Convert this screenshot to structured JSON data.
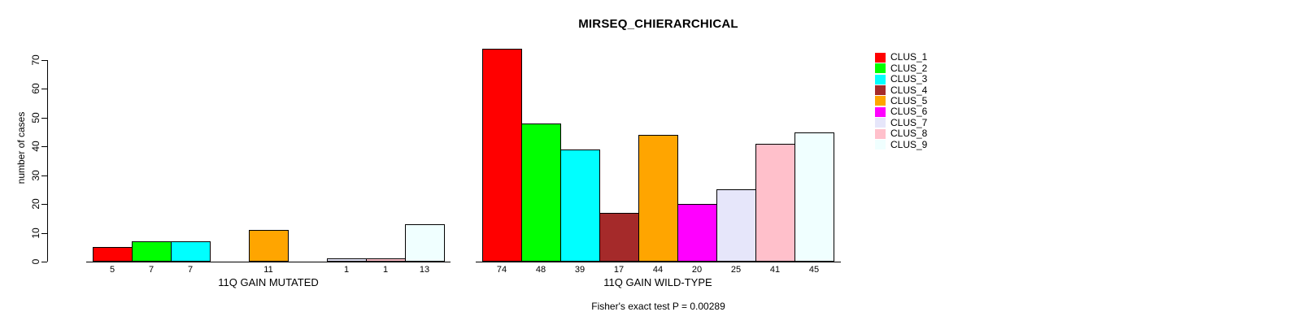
{
  "page": {
    "background": "#FFFFFF"
  },
  "chart_data": {
    "type": "bar",
    "title": "MIRSEQ_CHIERARCHICAL",
    "ylabel": "number of cases",
    "xlabel": "",
    "ylim": [
      0,
      70
    ],
    "yticks": [
      0,
      10,
      20,
      30,
      40,
      50,
      60,
      70
    ],
    "grid": false,
    "bar_border_color": "#000000",
    "legend_position": "right",
    "legend": {
      "entries": [
        {
          "label": "CLUS_1",
          "color": "#FF0000"
        },
        {
          "label": "CLUS_2",
          "color": "#00FF00"
        },
        {
          "label": "CLUS_3",
          "color": "#00FFFF"
        },
        {
          "label": "CLUS_4",
          "color": "#A52A2A"
        },
        {
          "label": "CLUS_5",
          "color": "#FFA500"
        },
        {
          "label": "CLUS_6",
          "color": "#FF00FF"
        },
        {
          "label": "CLUS_7",
          "color": "#E6E6FA"
        },
        {
          "label": "CLUS_8",
          "color": "#FFC0CB"
        },
        {
          "label": "CLUS_9",
          "color": "#F0FFFF"
        }
      ]
    },
    "groups": [
      {
        "label": "11Q GAIN MUTATED",
        "values": [
          5,
          7,
          7,
          0,
          11,
          0,
          1,
          1,
          13
        ]
      },
      {
        "label": "11Q GAIN WILD-TYPE",
        "values": [
          74,
          48,
          39,
          17,
          44,
          20,
          25,
          41,
          45
        ]
      }
    ],
    "annotation": "Fisher's exact test P = 0.00289"
  }
}
